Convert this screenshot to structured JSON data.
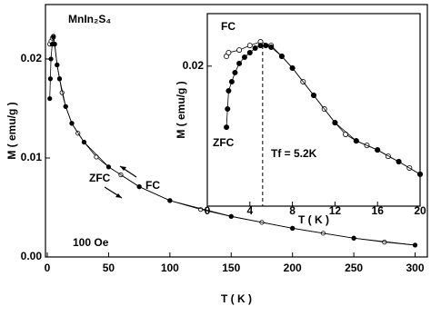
{
  "chart_data": [
    {
      "type": "line",
      "xlabel": "T ( K )",
      "ylabel": "M ( emu/g )",
      "xlim": [
        -1.5,
        310
      ],
      "ylim": [
        0,
        0.0255
      ],
      "xticks": [
        0,
        50,
        100,
        150,
        200,
        250,
        300
      ],
      "yticks": [
        {
          "value": 0,
          "label": "0.00"
        },
        0.01,
        0.02
      ],
      "annotations": [
        {
          "text": "MnIn₂S₄"
        },
        {
          "text": "100 Oe"
        }
      ],
      "series": [
        {
          "name": "FC",
          "color": "#000000",
          "filled": false,
          "x": [
            2,
            3,
            4,
            5,
            6,
            8,
            10,
            12,
            15,
            20,
            25,
            30,
            40,
            50,
            60,
            75,
            100,
            125,
            150,
            175,
            200,
            225,
            250,
            275,
            300
          ],
          "values": [
            0.0215,
            0.0218,
            0.0221,
            0.0223,
            0.0215,
            0.0194,
            0.018,
            0.0166,
            0.0152,
            0.0135,
            0.0125,
            0.0116,
            0.0101,
            0.0091,
            0.0083,
            0.0071,
            0.0057,
            0.0048,
            0.0041,
            0.0035,
            0.0029,
            0.0024,
            0.0019,
            0.0015,
            0.0012
          ]
        },
        {
          "name": "ZFC",
          "color": "#000000",
          "filled": true,
          "x": [
            2,
            2.5,
            3,
            4,
            5,
            6,
            8,
            10,
            15,
            20,
            30,
            50,
            75,
            100,
            150,
            200,
            250,
            300
          ],
          "values": [
            0.016,
            0.018,
            0.02,
            0.0215,
            0.0222,
            0.0215,
            0.0194,
            0.018,
            0.0152,
            0.0135,
            0.0116,
            0.0091,
            0.0071,
            0.0057,
            0.0041,
            0.0029,
            0.0019,
            0.0012
          ]
        }
      ]
    },
    {
      "type": "line",
      "xlabel": "T ( K )",
      "ylabel": "M ( emu/g )",
      "xlim": [
        0,
        20
      ],
      "ylim": [
        0.012,
        0.023
      ],
      "xticks": [
        0,
        4,
        8,
        12,
        16,
        20
      ],
      "yticks": [
        0.02
      ],
      "vline": 5.2,
      "annotations": [
        {
          "text": "Tf = 5.2K"
        }
      ],
      "series": [
        {
          "name": "FC",
          "color": "#000000",
          "filled": false,
          "x": [
            1.8,
            2,
            3,
            4,
            5,
            6,
            7,
            8,
            9,
            10,
            11,
            12,
            13,
            14,
            15,
            16,
            17,
            18,
            19,
            20
          ],
          "values": [
            0.02056,
            0.02077,
            0.02092,
            0.02118,
            0.02139,
            0.02118,
            0.02056,
            0.01989,
            0.01911,
            0.01833,
            0.01755,
            0.01677,
            0.0161,
            0.01573,
            0.01547,
            0.01521,
            0.01485,
            0.01454,
            0.01418,
            0.01382
          ]
        },
        {
          "name": "ZFC",
          "color": "#000000",
          "filled": true,
          "x": [
            1.8,
            1.9,
            2,
            2.3,
            2.6,
            3,
            3.5,
            4,
            4.5,
            5,
            5.5,
            6,
            7,
            8,
            10,
            12,
            14,
            16,
            18,
            20
          ],
          "values": [
            0.01651,
            0.01755,
            0.01859,
            0.01911,
            0.01963,
            0.02015,
            0.02051,
            0.02077,
            0.02103,
            0.02118,
            0.02118,
            0.02108,
            0.02056,
            0.01989,
            0.01833,
            0.01677,
            0.01573,
            0.01521,
            0.01454,
            0.01382
          ]
        }
      ]
    }
  ]
}
